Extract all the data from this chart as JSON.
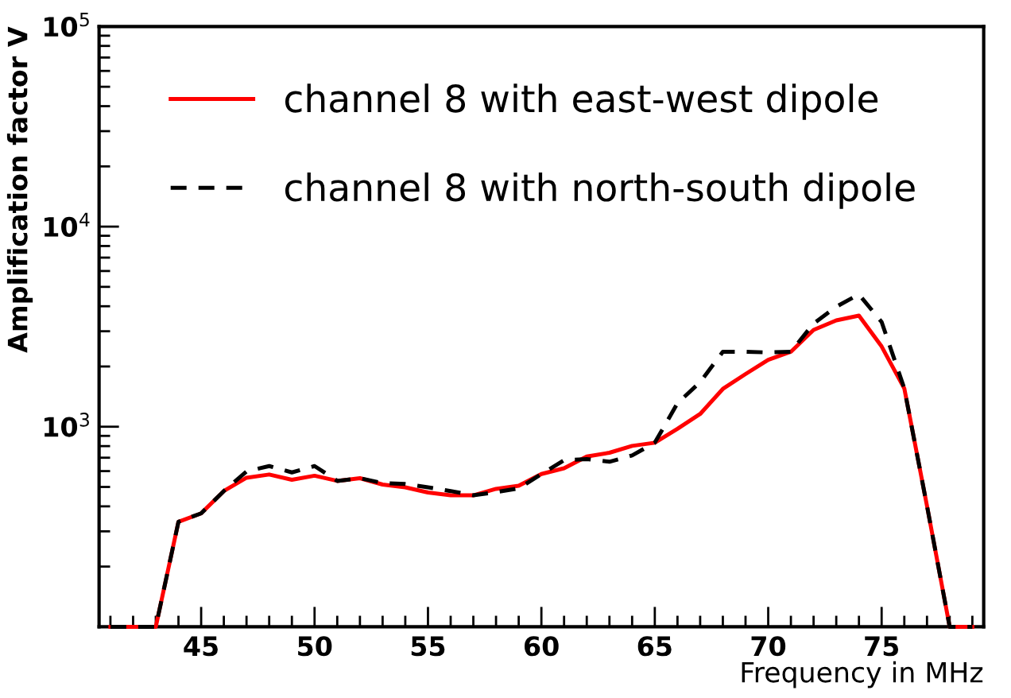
{
  "chart_data": {
    "type": "line",
    "xlabel": "Frequency in MHz",
    "ylabel": "Amplification factor V",
    "x": [
      41,
      42,
      43,
      44,
      45,
      46,
      47,
      48,
      49,
      50,
      51,
      52,
      53,
      54,
      55,
      56,
      57,
      58,
      59,
      60,
      61,
      62,
      63,
      64,
      65,
      66,
      67,
      68,
      69,
      70,
      71,
      72,
      73,
      74,
      75,
      76,
      77,
      78,
      79
    ],
    "series": [
      {
        "name": "channel 8 with east-west dipole",
        "color": "#ff0000",
        "line_style": "solid",
        "values": [
          100,
          100,
          100,
          335,
          369,
          477,
          556,
          577,
          543,
          569,
          536,
          553,
          514,
          498,
          469,
          454,
          454,
          489,
          507,
          580,
          620,
          710,
          741,
          802,
          832,
          976,
          1158,
          1545,
          1833,
          2161,
          2370,
          3046,
          3400,
          3593,
          2517,
          1553,
          402,
          100,
          100
        ]
      },
      {
        "name": "channel 8 with north-south dipole",
        "color": "#000000",
        "line_style": "dashed",
        "values": [
          100,
          100,
          100,
          335,
          369,
          477,
          598,
          636,
          591,
          636,
          536,
          553,
          523,
          517,
          498,
          477,
          454,
          471,
          492,
          580,
          680,
          689,
          668,
          719,
          832,
          1310,
          1671,
          2370,
          2370,
          2350,
          2370,
          3277,
          3980,
          4585,
          3337,
          1553,
          402,
          100,
          100
        ]
      }
    ],
    "log": "y",
    "xlim": [
      40.5,
      79.5
    ],
    "ylim": [
      100,
      100000
    ],
    "xticks": [
      45,
      50,
      55,
      60,
      65,
      70,
      75
    ],
    "yticks": [
      {
        "value": 1000,
        "label": "10$^{3}$"
      },
      {
        "value": 10000,
        "label": "10$^{4}$"
      },
      {
        "value": 100000,
        "label": "10$^{5}$"
      }
    ],
    "grid": false,
    "legend": "top left",
    "marker": "none"
  }
}
